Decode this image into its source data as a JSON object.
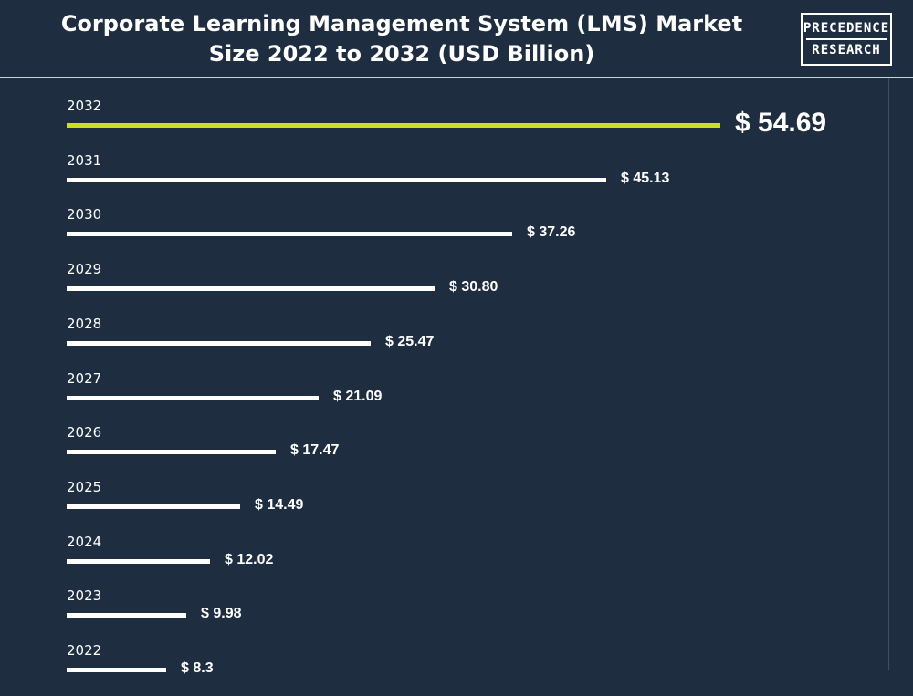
{
  "header": {
    "title_line1": "Corporate Learning Management System (LMS) Market",
    "title_line2": "Size 2022 to 2032 (USD Billion)"
  },
  "logo": {
    "line1": "PRECEDENCE",
    "line2": "RESEARCH"
  },
  "colors": {
    "background": "#1e2e40",
    "bar": "#ffffff",
    "highlight_bar": "#cde01f"
  },
  "chart_data": {
    "type": "bar",
    "orientation": "horizontal",
    "title": "Corporate Learning Management System (LMS) Market Size 2022 to 2032 (USD Billion)",
    "categories": [
      "2032",
      "2031",
      "2030",
      "2029",
      "2028",
      "2027",
      "2026",
      "2025",
      "2024",
      "2023",
      "2022"
    ],
    "values": [
      54.69,
      45.13,
      37.26,
      30.8,
      25.47,
      21.09,
      17.47,
      14.49,
      12.02,
      9.98,
      8.3
    ],
    "value_labels": [
      "$ 54.69",
      "$ 45.13",
      "$ 37.26",
      "$ 30.80",
      "$ 25.47",
      "$ 21.09",
      "$ 17.47",
      "$ 14.49",
      "$ 12.02",
      "$ 9.98",
      "$ 8.3"
    ],
    "highlight_category": "2032",
    "xlim": [
      0,
      54.69
    ],
    "grid": false,
    "legend": "none"
  }
}
